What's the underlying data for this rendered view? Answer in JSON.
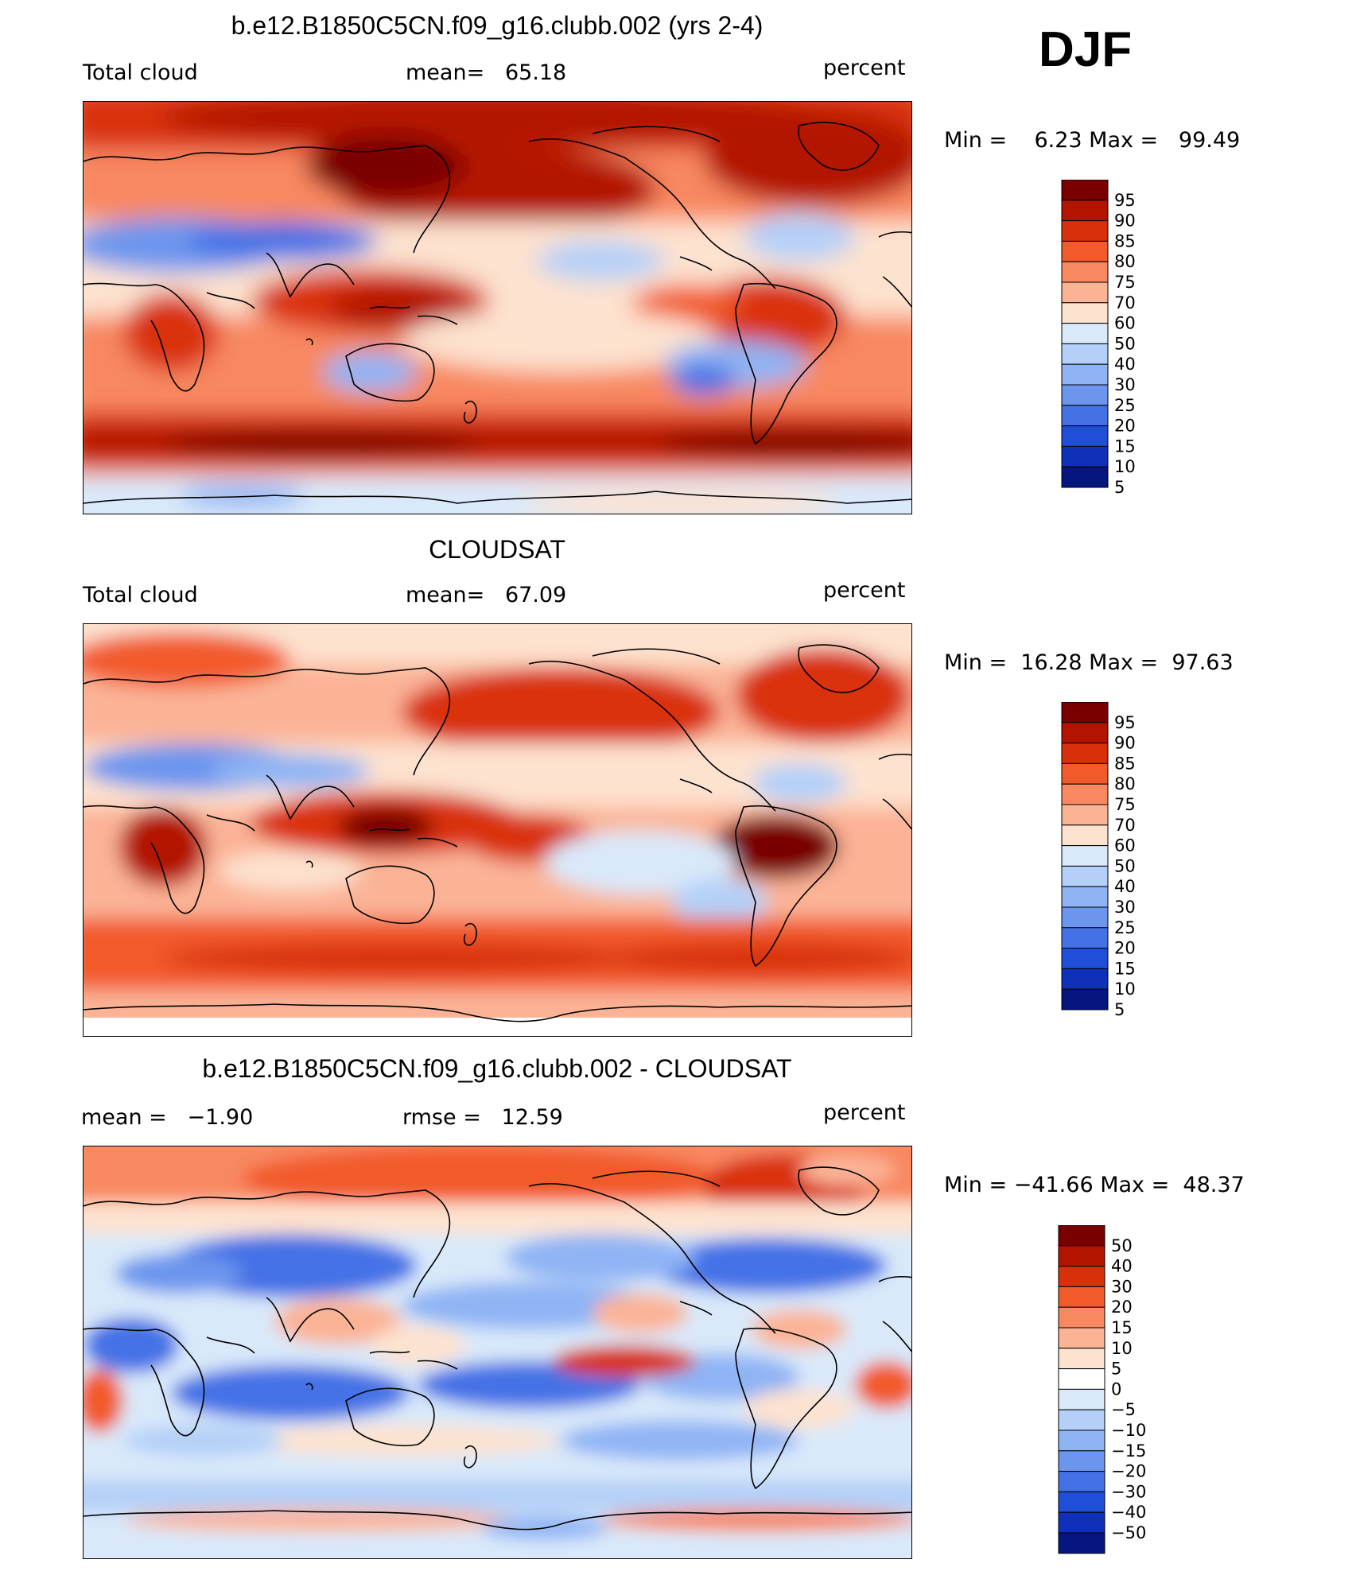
{
  "djf_label": "DJF",
  "colors": {
    "abs_scale": [
      "#7a0000",
      "#b31400",
      "#d9300c",
      "#f25a2a",
      "#f88860",
      "#fbb396",
      "#fde2cf",
      "#d9e9fa",
      "#b4d0f8",
      "#8fb4f4",
      "#6c96ee",
      "#4472e6",
      "#1f4ed8",
      "#0f30b8",
      "#051680"
    ],
    "diff_scale": [
      "#7a0000",
      "#b31400",
      "#d9300c",
      "#f25a2a",
      "#f88860",
      "#fbb396",
      "#fde2cf",
      "#ffffff",
      "#d9e9fa",
      "#b4d0f8",
      "#8fb4f4",
      "#6c96ee",
      "#4472e6",
      "#1f4ed8",
      "#0f30b8",
      "#051680"
    ]
  },
  "panels": [
    {
      "title": "b.e12.B1850C5CN.f09_g16.clubb.002 (yrs 2-4)",
      "left_label": "Total cloud",
      "mid_label": "mean=   65.18",
      "right_label": "percent",
      "minmax": "Min =    6.23 Max =   99.49",
      "colorbar_labels": [
        "95",
        "90",
        "85",
        "80",
        "75",
        "70",
        "60",
        "50",
        "40",
        "30",
        "25",
        "20",
        "15",
        "10",
        "5"
      ]
    },
    {
      "title": "CLOUDSAT",
      "left_label": "Total cloud",
      "mid_label": "mean=   67.09",
      "right_label": "percent",
      "minmax": "Min =  16.28 Max =  97.63",
      "colorbar_labels": [
        "95",
        "90",
        "85",
        "80",
        "75",
        "70",
        "60",
        "50",
        "40",
        "30",
        "25",
        "20",
        "15",
        "10",
        "5"
      ]
    },
    {
      "title": "b.e12.B1850C5CN.f09_g16.clubb.002 - CLOUDSAT",
      "left_label": "mean =   −1.90",
      "mid_label": "rmse =   12.59",
      "right_label": "percent",
      "minmax": "Min = −41.66 Max =  48.37",
      "colorbar_labels": [
        "50",
        "40",
        "30",
        "20",
        "15",
        "10",
        "5",
        "0",
        "−5",
        "−10",
        "−15",
        "−20",
        "−30",
        "−40",
        "−50"
      ]
    }
  ]
}
